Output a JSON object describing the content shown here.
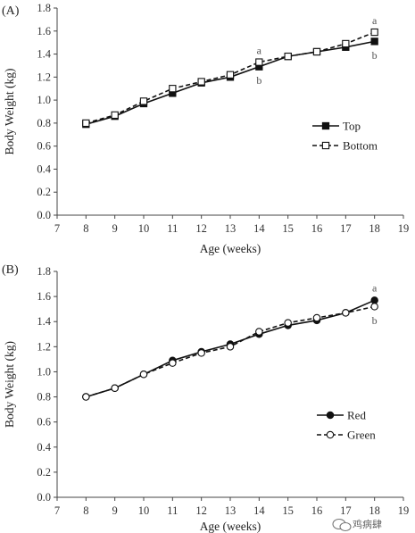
{
  "watermark": {
    "text": "鸡病肆",
    "icon": "wechat-icon"
  },
  "chart_data": [
    {
      "type": "line",
      "panel_label": "(A)",
      "xlabel": "Age (weeks)",
      "ylabel": "Body Weight (kg)",
      "xlim": [
        7,
        19
      ],
      "ylim": [
        0.0,
        1.8
      ],
      "xticks": [
        "7",
        "8",
        "9",
        "10",
        "11",
        "12",
        "13",
        "14",
        "15",
        "16",
        "17",
        "18",
        "19"
      ],
      "yticks": [
        "0.0",
        "0.2",
        "0.4",
        "0.6",
        "0.8",
        "1.0",
        "1.2",
        "1.4",
        "1.6",
        "1.8"
      ],
      "grid": false,
      "legend_position": "right",
      "x": [
        8,
        9,
        10,
        11,
        12,
        13,
        14,
        15,
        16,
        17,
        18
      ],
      "series": [
        {
          "name": "Top",
          "marker": "filled-square",
          "dash": "solid",
          "values": [
            0.79,
            0.86,
            0.97,
            1.06,
            1.15,
            1.2,
            1.29,
            1.38,
            1.42,
            1.46,
            1.51
          ]
        },
        {
          "name": "Bottom",
          "marker": "open-square",
          "dash": "dashed",
          "values": [
            0.8,
            0.87,
            0.99,
            1.1,
            1.16,
            1.22,
            1.33,
            1.38,
            1.42,
            1.49,
            1.59
          ]
        }
      ],
      "annotations": [
        {
          "text": "a",
          "x": 14,
          "y": 1.43
        },
        {
          "text": "b",
          "x": 14,
          "y": 1.17
        },
        {
          "text": "a",
          "x": 18,
          "y": 1.69
        },
        {
          "text": "b",
          "x": 18,
          "y": 1.39
        }
      ]
    },
    {
      "type": "line",
      "panel_label": "(B)",
      "xlabel": "Age (weeks)",
      "ylabel": "Body Weight (kg)",
      "xlim": [
        7,
        19
      ],
      "ylim": [
        0.0,
        1.8
      ],
      "xticks": [
        "7",
        "8",
        "9",
        "10",
        "11",
        "12",
        "13",
        "14",
        "15",
        "16",
        "17",
        "18",
        "19"
      ],
      "yticks": [
        "0.0",
        "0.2",
        "0.4",
        "0.6",
        "0.8",
        "1.0",
        "1.2",
        "1.4",
        "1.6",
        "1.8"
      ],
      "grid": false,
      "legend_position": "right",
      "x": [
        8,
        9,
        10,
        11,
        12,
        13,
        14,
        15,
        16,
        17,
        18
      ],
      "series": [
        {
          "name": "Red",
          "marker": "filled-circle",
          "dash": "solid",
          "values": [
            0.8,
            0.87,
            0.98,
            1.09,
            1.16,
            1.22,
            1.3,
            1.37,
            1.41,
            1.47,
            1.57
          ]
        },
        {
          "name": "Green",
          "marker": "open-circle",
          "dash": "dashed",
          "values": [
            0.8,
            0.87,
            0.98,
            1.07,
            1.15,
            1.2,
            1.32,
            1.39,
            1.43,
            1.47,
            1.52
          ]
        }
      ],
      "annotations": [
        {
          "text": "a",
          "x": 18,
          "y": 1.67
        },
        {
          "text": "b",
          "x": 18,
          "y": 1.41
        }
      ]
    }
  ]
}
